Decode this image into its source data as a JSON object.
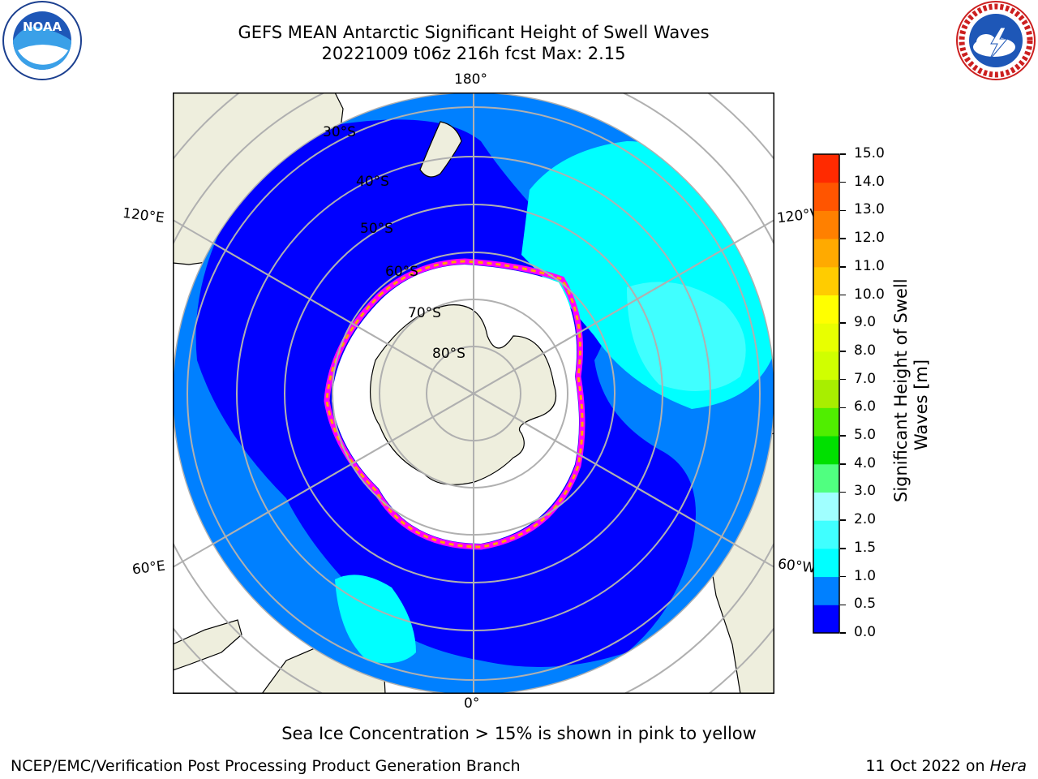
{
  "header": {
    "title_line1": "GEFS MEAN Antarctic Significant Height of Swell Waves",
    "title_line2": "20221009 t06z 216h fcst   Max: 2.15"
  },
  "logos": {
    "noaa_text": "NOAA",
    "noaa_ring_text": "NATIONAL OCEANIC AND ATMOSPHERIC ADMINISTRATION · U.S. DEPARTMENT OF COMMERCE",
    "nws_ring_text": "NATIONAL WEATHER SERVICE"
  },
  "map": {
    "lon_labels": {
      "top": "180°",
      "bottom": "0°",
      "upper_left": "120°E",
      "upper_right": "120°W",
      "lower_left": "60°E",
      "lower_right": "60°W"
    },
    "lat_labels": [
      "30°S",
      "40°S",
      "50°S",
      "60°S",
      "70°S",
      "80°S"
    ],
    "colors": {
      "land": "#eeeedd",
      "water_swell_0_0p5": "#0000ff",
      "water_swell_0p5_1": "#0080ff",
      "water_swell_1_1p5": "#00ffff",
      "water_swell_1p5_2": "#40ffff",
      "sea_ice_edge": [
        "#ff00ff",
        "#ff80ff",
        "#ffa500",
        "#ffff00"
      ],
      "grid": "#b0b0b0"
    }
  },
  "colorbar": {
    "label_line1": "Significant Height of Swell",
    "label_line2": "Waves [m]",
    "ticks": [
      "0.0",
      "0.5",
      "1.0",
      "1.5",
      "2.0",
      "3.0",
      "4.0",
      "5.0",
      "6.0",
      "7.0",
      "8.0",
      "9.0",
      "10.0",
      "11.0",
      "12.0",
      "13.0",
      "14.0",
      "15.0"
    ],
    "colors": [
      "#0000ff",
      "#0080ff",
      "#00ffff",
      "#40ffff",
      "#a0ffff",
      "#50ff80",
      "#00e000",
      "#50ee00",
      "#a8ee00",
      "#d0ff00",
      "#e8ff00",
      "#ffff00",
      "#ffcc00",
      "#ffaa00",
      "#ff8000",
      "#ff5500",
      "#ff2a00",
      "#ff0000"
    ]
  },
  "note": "Sea Ice Concentration > 15% is shown in pink to yellow",
  "footer": {
    "left": "NCEP/EMC/Verification Post Processing Product Generation Branch",
    "right_date": "11 Oct 2022 on ",
    "right_machine": "Hera"
  }
}
